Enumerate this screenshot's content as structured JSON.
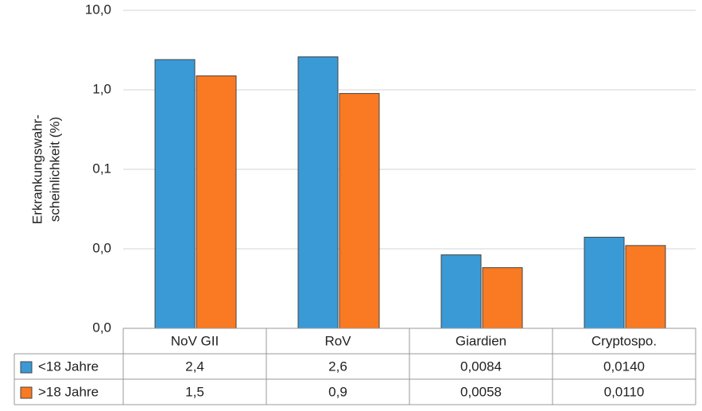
{
  "chart_data": {
    "type": "bar",
    "y_label": [
      "Erkrankungswahr-",
      "scheinlichkeit (%)"
    ],
    "categories": [
      "NoV GII",
      "RoV",
      "Giardien",
      "Cryptospo."
    ],
    "series": [
      {
        "name": "<18 Jahre",
        "color": "#3a9ad6",
        "values": [
          2.4,
          2.6,
          0.0084,
          0.014
        ],
        "value_labels": [
          "2,4",
          "2,6",
          "0,0084",
          "0,0140"
        ]
      },
      {
        "name": ">18 Jahre",
        "color": "#f97a22",
        "values": [
          1.5,
          0.9,
          0.0058,
          0.011
        ],
        "value_labels": [
          "1,5",
          "0,9",
          "0,0058",
          "0,0110"
        ]
      }
    ],
    "log_scale": true,
    "ylim": [
      0.001,
      10
    ],
    "yticks": [
      {
        "value": 0.001,
        "label": "0,0"
      },
      {
        "value": 0.01,
        "label": "0,0"
      },
      {
        "value": 0.1,
        "label": "0,1"
      },
      {
        "value": 1,
        "label": "1,0"
      },
      {
        "value": 10,
        "label": "10,0"
      }
    ],
    "grid": true,
    "data_table": true
  }
}
